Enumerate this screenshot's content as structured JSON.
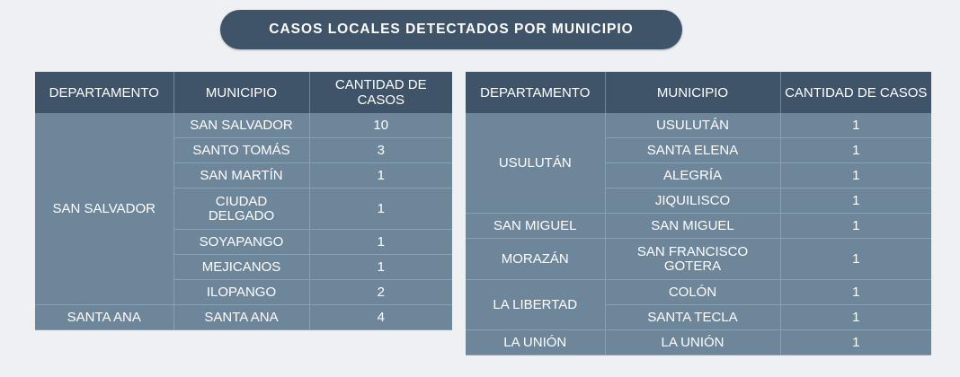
{
  "title": "CASOS LOCALES DETECTADOS POR MUNICIPIO",
  "headers": {
    "departamento": "DEPARTAMENTO",
    "municipio": "MUNICIPIO",
    "cantidad": "CANTIDAD DE CASOS"
  },
  "left": {
    "dept_san_salvador": "SAN SALVADOR",
    "dept_santa_ana": "SANTA ANA",
    "rows": [
      {
        "municipio": "SAN SALVADOR",
        "casos": "10"
      },
      {
        "municipio": "SANTO TOMÁS",
        "casos": "3"
      },
      {
        "municipio": "SAN MARTÍN",
        "casos": "1"
      },
      {
        "municipio": "CIUDAD DELGADO",
        "casos": "1"
      },
      {
        "municipio": "SOYAPANGO",
        "casos": "1"
      },
      {
        "municipio": "MEJICANOS",
        "casos": "1"
      },
      {
        "municipio": "ILOPANGO",
        "casos": "2"
      },
      {
        "municipio": "SANTA ANA",
        "casos": "4"
      }
    ]
  },
  "right": {
    "dept_usulutan": "USULUTÁN",
    "dept_san_miguel": "SAN MIGUEL",
    "dept_morazan": "MORAZÁN",
    "dept_la_libertad": "LA LIBERTAD",
    "dept_la_union": "LA UNIÓN",
    "rows": [
      {
        "municipio": "USULUTÁN",
        "casos": "1"
      },
      {
        "municipio": "SANTA ELENA",
        "casos": "1"
      },
      {
        "municipio": "ALEGRÍA",
        "casos": "1"
      },
      {
        "municipio": "JIQUILISCO",
        "casos": "1"
      },
      {
        "municipio": "SAN MIGUEL",
        "casos": "1"
      },
      {
        "municipio": "SAN FRANCISCO GOTERA",
        "casos": "1"
      },
      {
        "municipio": "COLÓN",
        "casos": "1"
      },
      {
        "municipio": "SANTA TECLA",
        "casos": "1"
      },
      {
        "municipio": "LA UNIÓN",
        "casos": "1"
      }
    ]
  }
}
